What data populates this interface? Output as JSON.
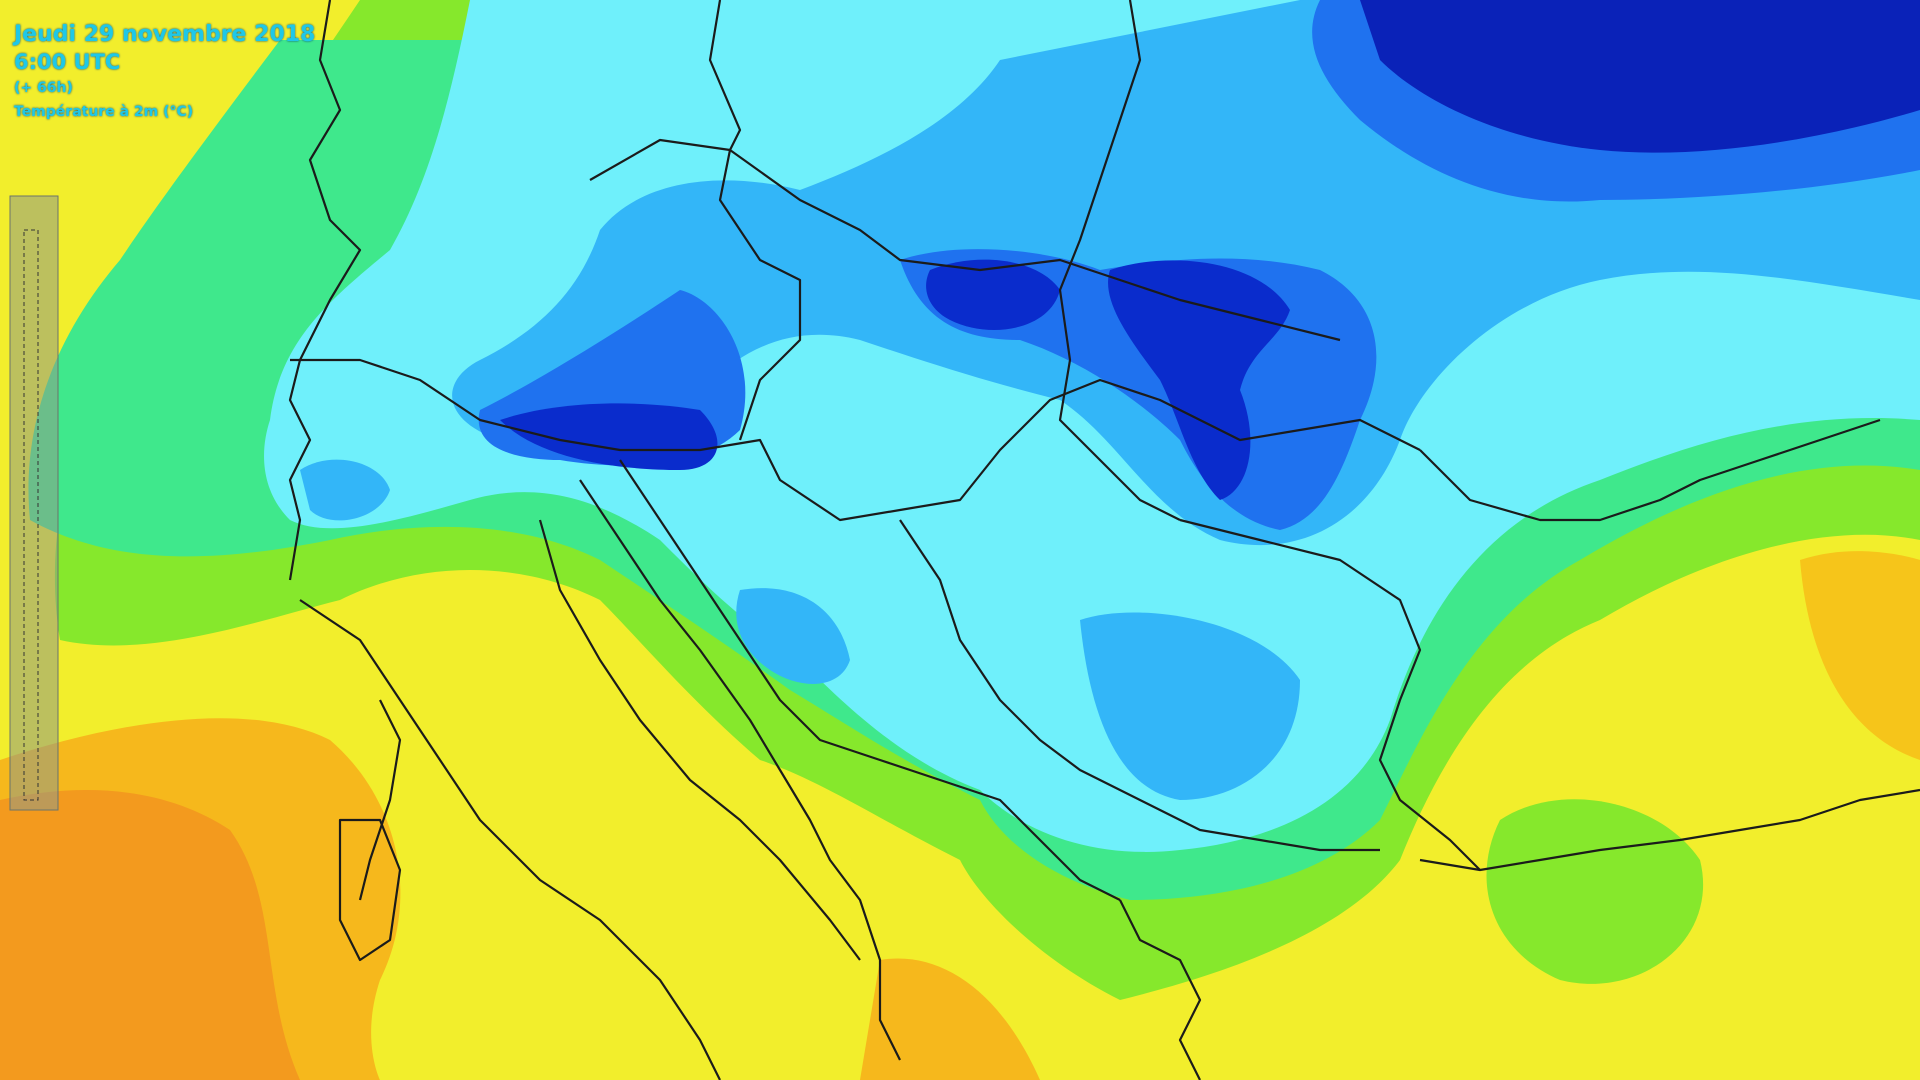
{
  "header": {
    "date": "Jeudi 29 novembre 2018",
    "time": "6:00 UTC",
    "run": "(+ 66h)",
    "parameter": "Température à 2m (°C)"
  }
}
